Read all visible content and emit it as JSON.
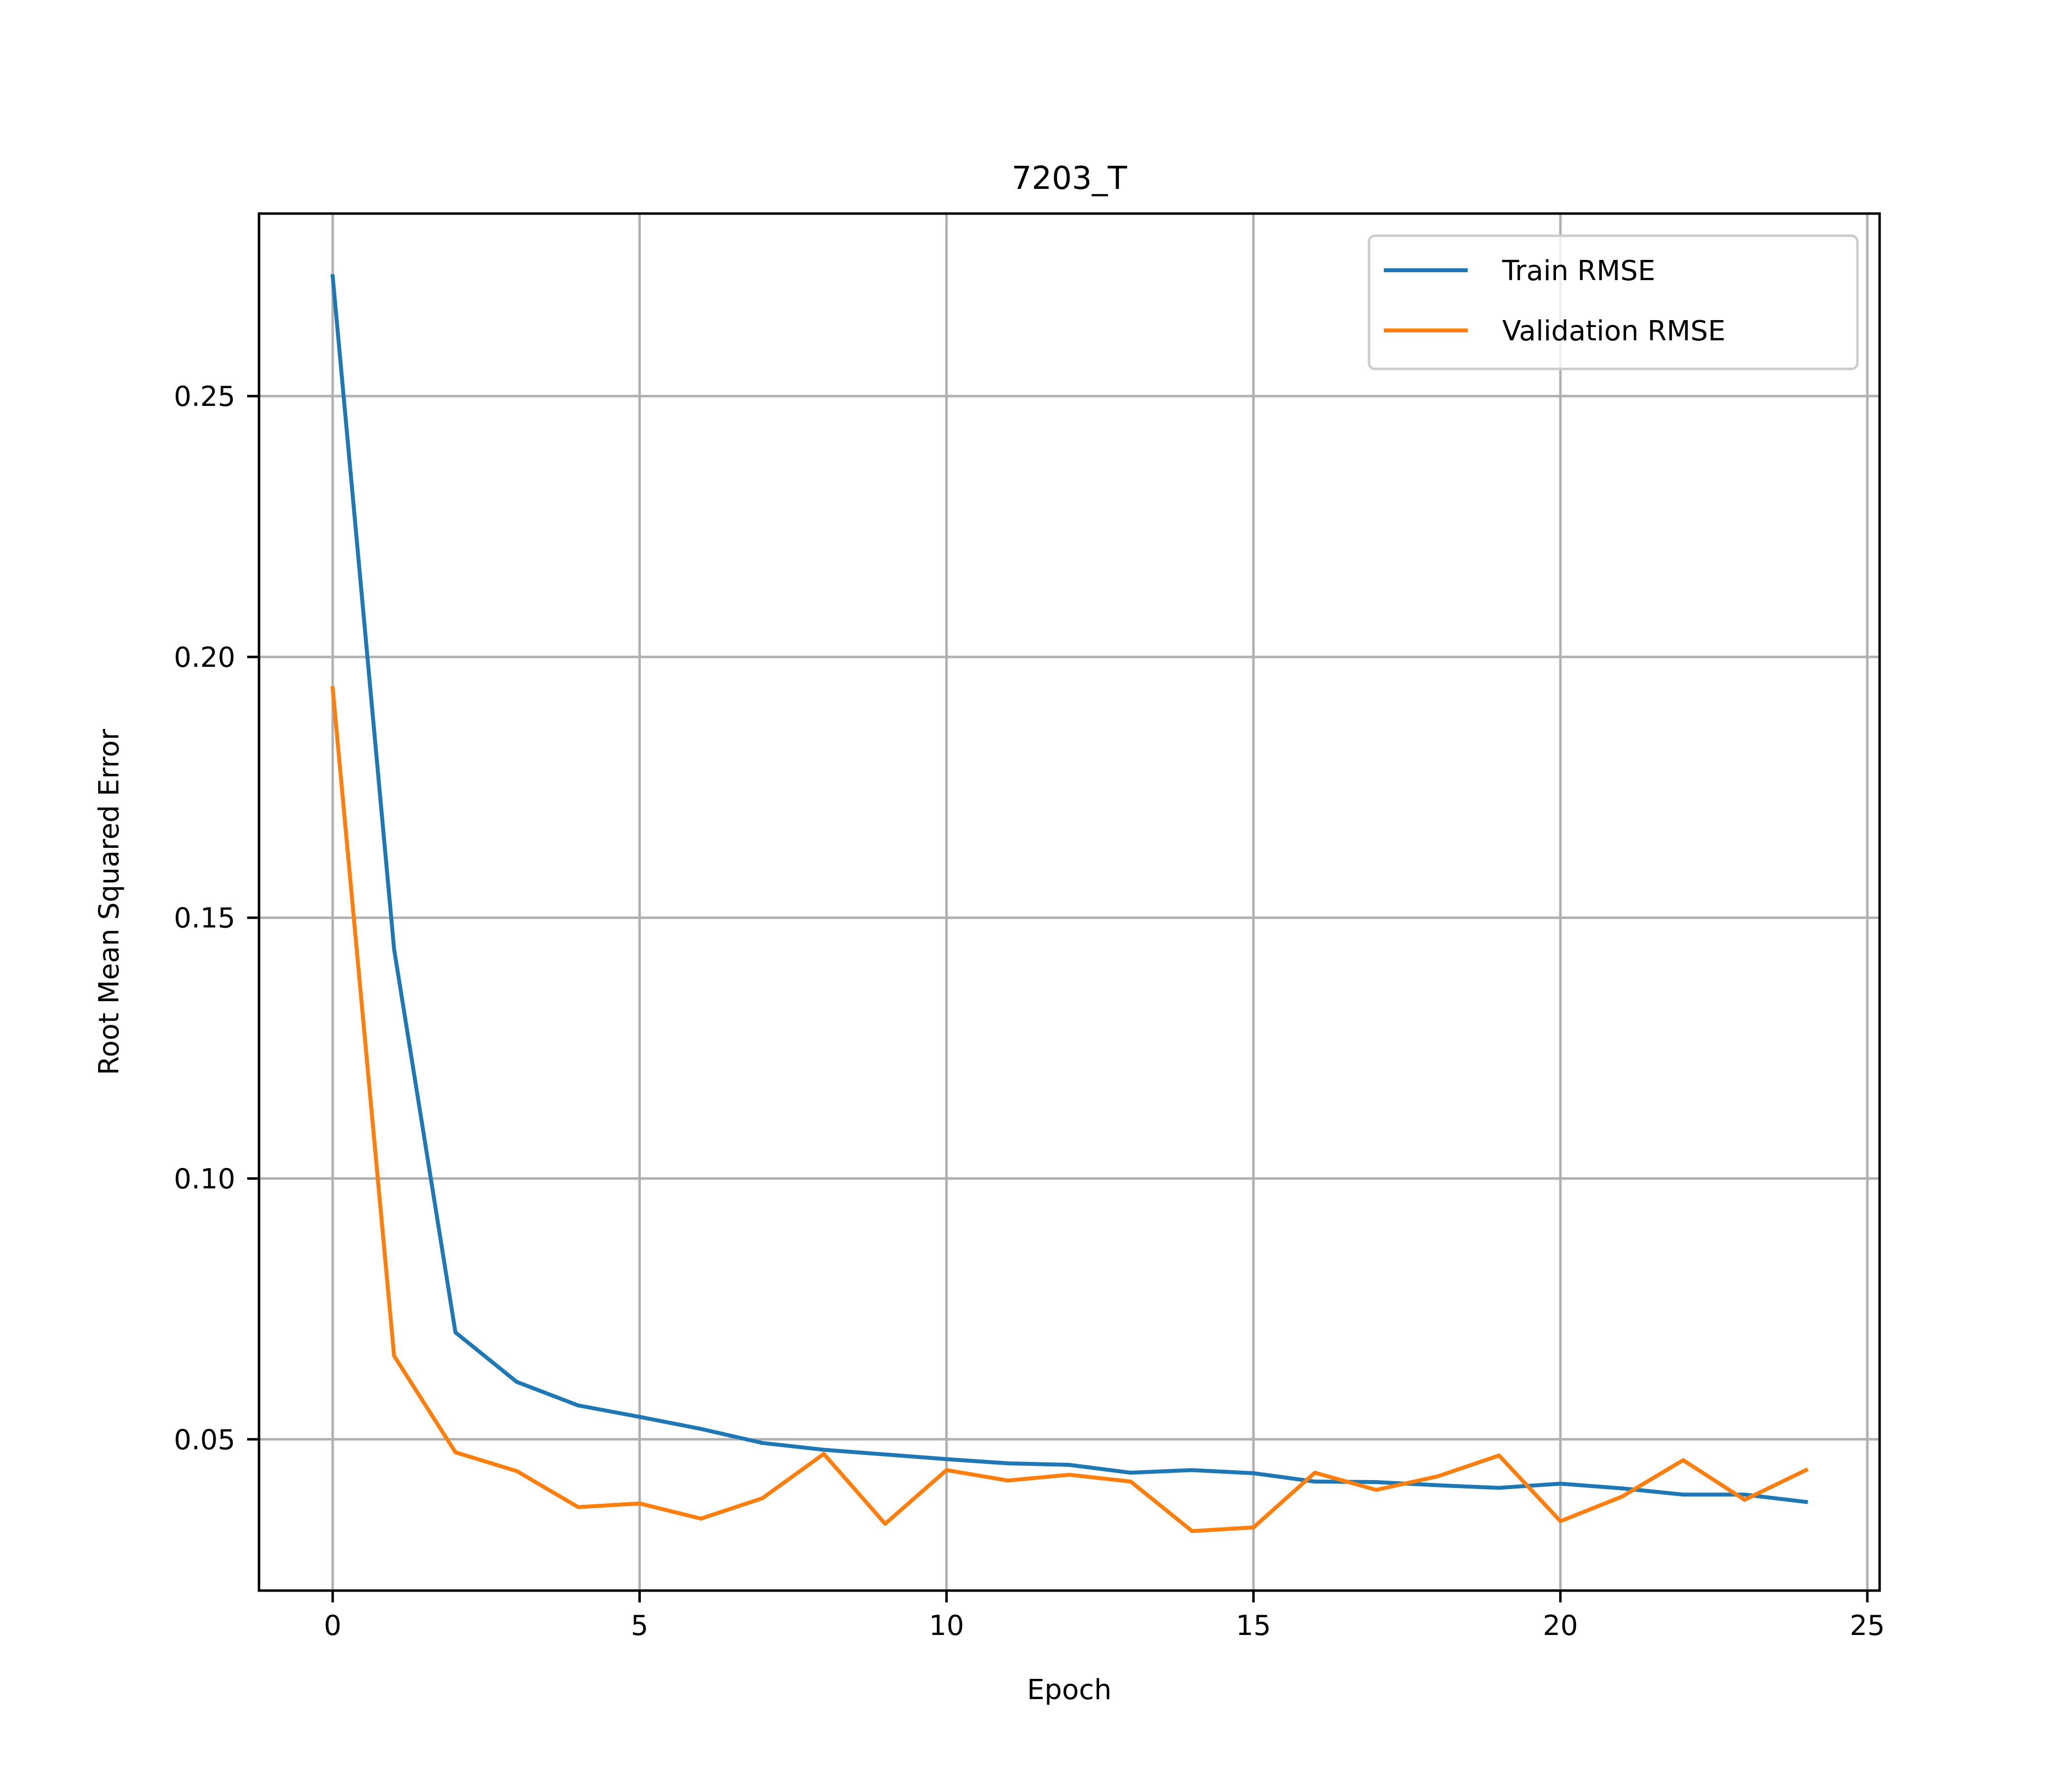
{
  "chart_data": {
    "type": "line",
    "title": "7203_T",
    "xlabel": "Epoch",
    "ylabel": "Root Mean Squared Error",
    "xlim": [
      -1.2,
      25.2
    ],
    "ylim": [
      0.021,
      0.285
    ],
    "xticks": [
      0,
      5,
      10,
      15,
      20,
      25
    ],
    "xtick_labels": [
      "0",
      "5",
      "10",
      "15",
      "20",
      "25"
    ],
    "yticks": [
      0.05,
      0.1,
      0.15,
      0.2,
      0.25
    ],
    "ytick_labels": [
      "0.05",
      "0.10",
      "0.15",
      "0.20",
      "0.25"
    ],
    "grid": true,
    "legend_position": "top-right",
    "x": [
      0,
      1,
      2,
      3,
      4,
      5,
      6,
      7,
      8,
      9,
      10,
      11,
      12,
      13,
      14,
      15,
      16,
      17,
      18,
      19,
      20,
      21,
      22,
      23,
      24
    ],
    "series": [
      {
        "name": "Train RMSE",
        "color": "#1f77b4",
        "values": [
          0.273,
          0.144,
          0.0705,
          0.061,
          0.0565,
          0.0543,
          0.052,
          0.0493,
          0.048,
          0.0471,
          0.0462,
          0.0454,
          0.0451,
          0.0436,
          0.0441,
          0.0435,
          0.0419,
          0.0418,
          0.0412,
          0.0407,
          0.0415,
          0.0406,
          0.0394,
          0.0394,
          0.038
        ]
      },
      {
        "name": "Validation RMSE",
        "color": "#ff7f0e",
        "values": [
          0.194,
          0.066,
          0.0475,
          0.0439,
          0.037,
          0.0377,
          0.0348,
          0.0387,
          0.0472,
          0.0338,
          0.0441,
          0.0421,
          0.0432,
          0.0419,
          0.0324,
          0.0331,
          0.0436,
          0.0403,
          0.0429,
          0.0469,
          0.0343,
          0.039,
          0.046,
          0.0384,
          0.0441
        ]
      }
    ]
  }
}
